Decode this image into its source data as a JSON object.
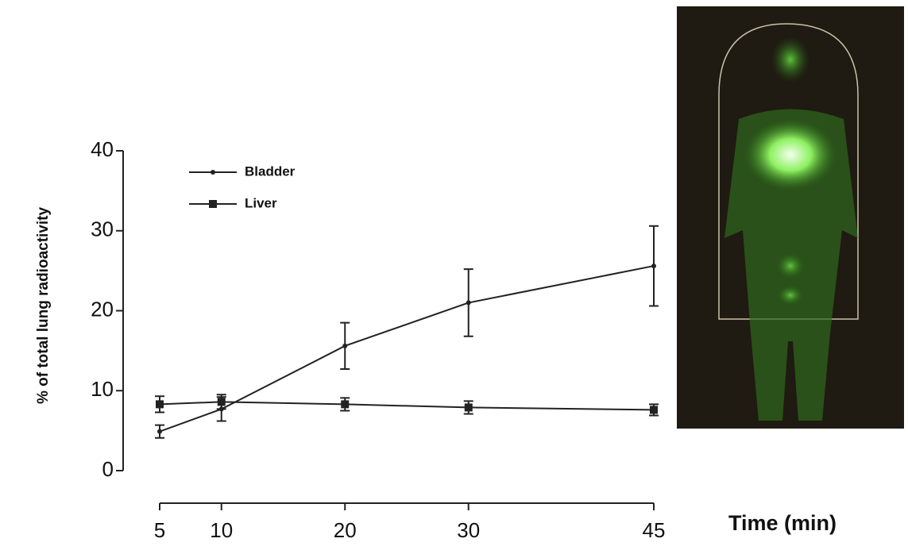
{
  "chart_data": {
    "type": "line",
    "y_label": "% of total lung radioactivity",
    "x_label": "Time (min)",
    "x": [
      5,
      10,
      20,
      30,
      45
    ],
    "series": [
      {
        "name": "Bladder",
        "color": "#222222",
        "marker": "dot",
        "values": [
          4.9,
          7.7,
          15.6,
          21,
          25.6
        ],
        "errors": [
          0.8,
          1.5,
          2.9,
          4.2,
          5
        ]
      },
      {
        "name": "Liver",
        "color": "#222222",
        "marker": "square",
        "values": [
          8.3,
          8.6,
          8.3,
          7.9,
          7.6
        ],
        "errors": [
          1,
          0.9,
          0.8,
          0.8,
          0.7
        ]
      }
    ],
    "xlim": [
      5,
      45
    ],
    "xticks": [
      5,
      10,
      20,
      30,
      45
    ],
    "ylim": [
      0,
      40
    ],
    "yticks": [
      0,
      10,
      20,
      30,
      40
    ],
    "legend": "upper-left"
  }
}
